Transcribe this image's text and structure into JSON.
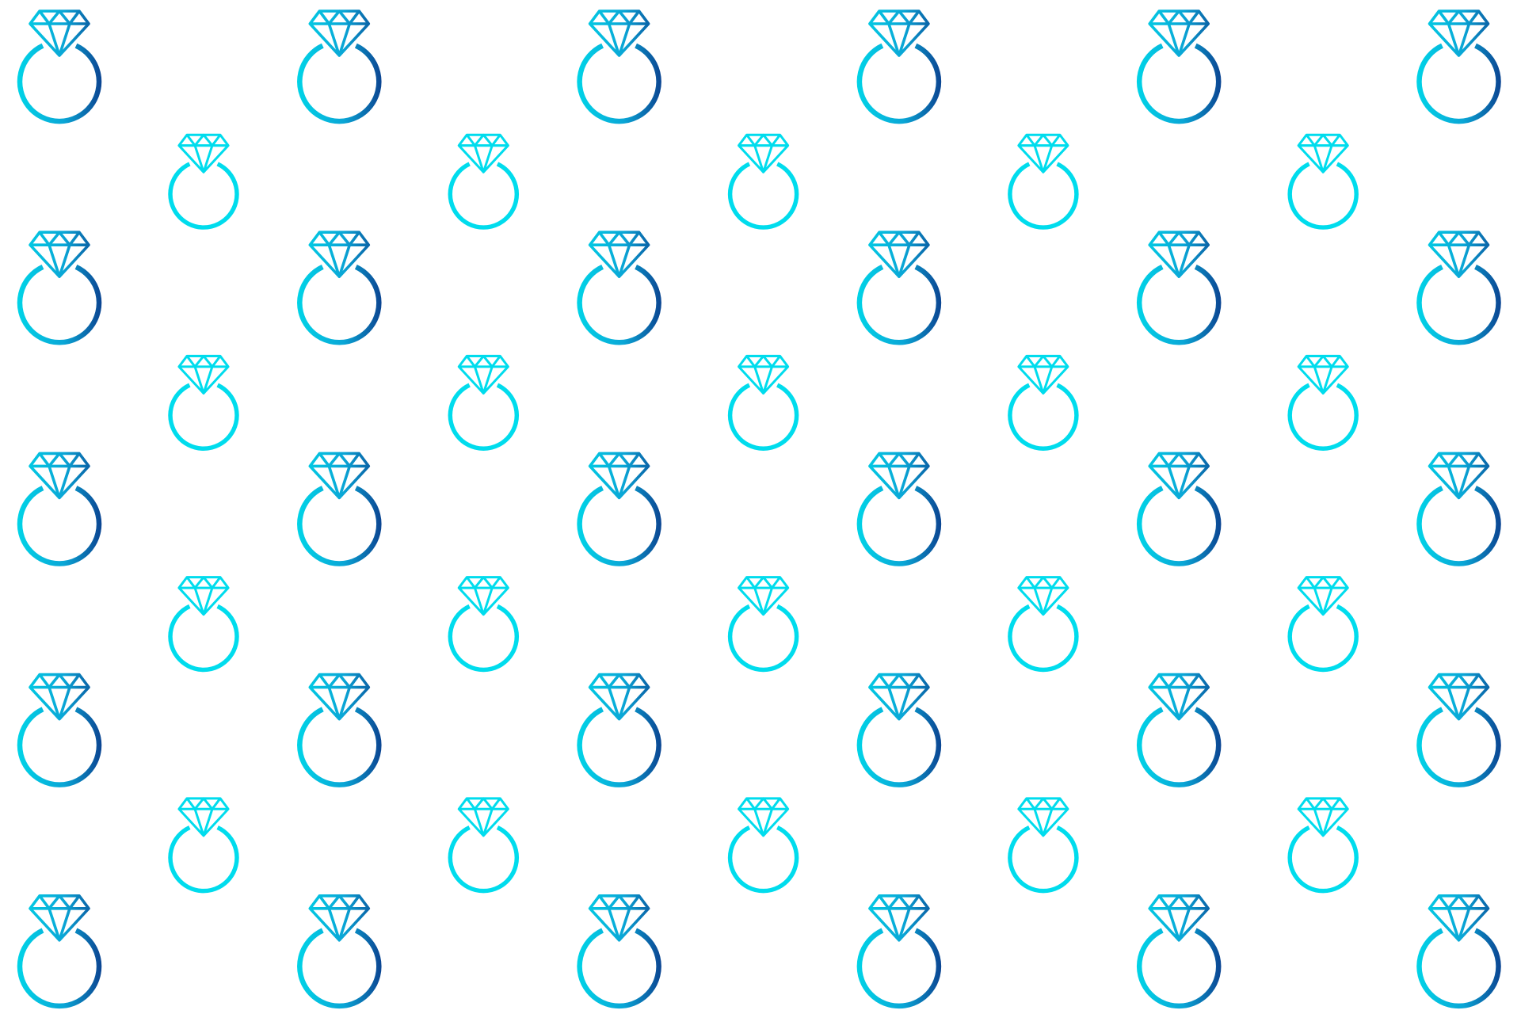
{
  "pattern": {
    "background": "#ffffff",
    "large_ring": {
      "icon": "diamond-ring-icon",
      "gradient_start": "#00d6e8",
      "gradient_mid": "#0aa6d6",
      "gradient_end": "#0b3f8e"
    },
    "small_ring": {
      "icon": "diamond-ring-icon",
      "color": "#00dced"
    }
  }
}
